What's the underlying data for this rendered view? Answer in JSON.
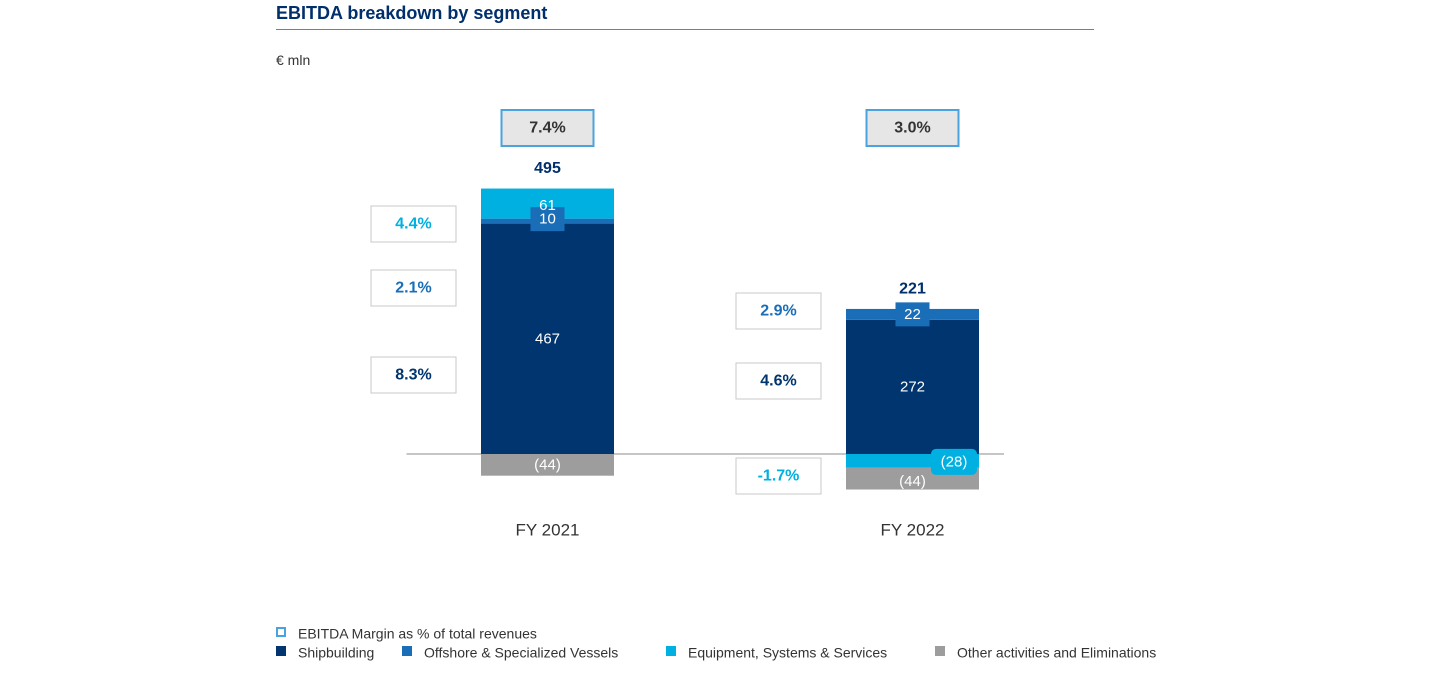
{
  "title": "EBITDA breakdown by segment",
  "unit_label": "€ mln",
  "colors": {
    "shipbuilding": "#00356f",
    "offshore": "#1a6eb8",
    "equipment": "#00b0e0",
    "other": "#9d9d9d",
    "margin_border": "#4aa3df",
    "margin_fill": "#e6e6e6",
    "title": "#002f6c"
  },
  "legend": [
    {
      "label": "EBITDA Margin as % of total revenues",
      "swatch": "outline"
    },
    {
      "label": "Shipbuilding",
      "swatch": "#00356f"
    },
    {
      "label": "Offshore & Specialized Vessels",
      "swatch": "#1a6eb8"
    },
    {
      "label": "Equipment, Systems & Services",
      "swatch": "#00b0e0"
    },
    {
      "label": "Other activities and Eliminations",
      "swatch": "#9d9d9d"
    }
  ],
  "chart_data": {
    "type": "bar",
    "stacked": true,
    "title": "EBITDA breakdown by segment",
    "ylabel": "€ mln",
    "categories": [
      "FY 2021",
      "FY 2022"
    ],
    "series": [
      {
        "name": "Shipbuilding",
        "values": [
          467,
          272
        ],
        "labels": [
          "467",
          "272"
        ],
        "margin": [
          "8.3%",
          "4.6%"
        ]
      },
      {
        "name": "Offshore & Specialized Vessels",
        "values": [
          10,
          22
        ],
        "labels": [
          "10",
          "22"
        ],
        "margin": [
          "2.1%",
          "2.9%"
        ]
      },
      {
        "name": "Equipment, Systems & Services",
        "values": [
          61,
          -28
        ],
        "labels": [
          "61",
          "(28)"
        ],
        "margin": [
          "4.4%",
          "-1.7%"
        ]
      },
      {
        "name": "Other activities and Eliminations",
        "values": [
          -44,
          -44
        ],
        "labels": [
          "(44)",
          "(44)"
        ],
        "margin": [
          "",
          ""
        ]
      }
    ],
    "totals": [
      "495",
      "221"
    ],
    "ebitda_margin": [
      "7.4%",
      "3.0%"
    ],
    "ylim": [
      -80,
      560
    ],
    "grid": false
  }
}
